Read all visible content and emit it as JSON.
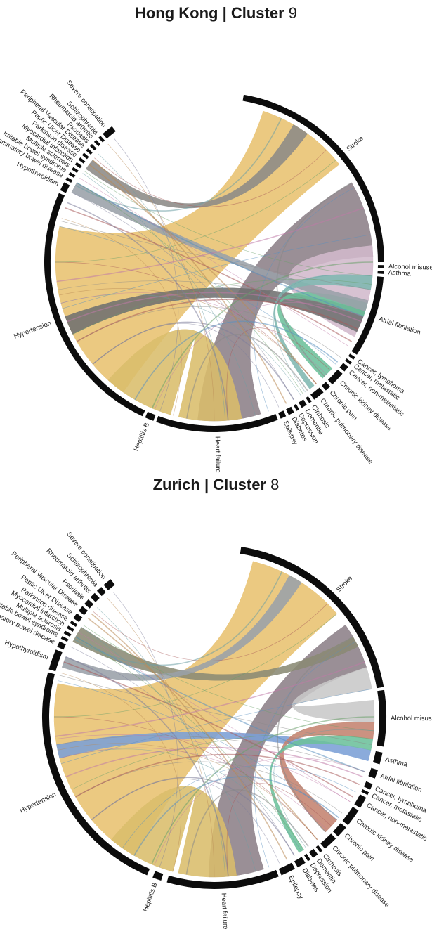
{
  "panels": [
    {
      "title": "Hong Kong | Cluster",
      "title_num": "9",
      "chart_data": {
        "type": "chord",
        "segments": [
          {
            "name": "Stroke",
            "start": 10,
            "end": 90
          },
          {
            "name": "Alcohol misuse",
            "start": 91,
            "end": 92
          },
          {
            "name": "Asthma",
            "start": 93,
            "end": 94
          },
          {
            "name": "Atrial fibrilation",
            "start": 95,
            "end": 123
          },
          {
            "name": "Cancer, lymphoma",
            "start": 124,
            "end": 125
          },
          {
            "name": "Cancer, metastatic",
            "start": 126,
            "end": 127
          },
          {
            "name": "Cancer, non-metastatic",
            "start": 128,
            "end": 130
          },
          {
            "name": "Chronic kidney disease",
            "start": 131,
            "end": 136
          },
          {
            "name": "Chronic pain",
            "start": 137,
            "end": 139
          },
          {
            "name": "Chronic pulmonary disease",
            "start": 140,
            "end": 144
          },
          {
            "name": "Cirrhosis",
            "start": 145,
            "end": 146
          },
          {
            "name": "Dementia",
            "start": 147,
            "end": 149
          },
          {
            "name": "Depression",
            "start": 150,
            "end": 151
          },
          {
            "name": "Diabetes",
            "start": 152,
            "end": 154
          },
          {
            "name": "Epilepsy",
            "start": 155,
            "end": 157
          },
          {
            "name": "Heart failure",
            "start": 158,
            "end": 200
          },
          {
            "name": "Hepititis B",
            "start": 201,
            "end": 204
          },
          {
            "name": "Hypertension",
            "start": 205,
            "end": 294
          },
          {
            "name": "Hypothyroidism",
            "start": 295,
            "end": 298
          },
          {
            "name": "Inflammatory bowel disease",
            "start": 299,
            "end": 300
          },
          {
            "name": "Irritable bowel syndrome",
            "start": 301,
            "end": 302
          },
          {
            "name": "Multiple sclerosis",
            "start": 303,
            "end": 304
          },
          {
            "name": "Myocardial infarction",
            "start": 305,
            "end": 306
          },
          {
            "name": "Parkinson disease",
            "start": 307,
            "end": 308
          },
          {
            "name": "Peptic Ulcer Disease",
            "start": 309,
            "end": 310
          },
          {
            "name": "Peripheral Vascular Disease",
            "start": 311,
            "end": 312
          },
          {
            "name": "Psoriasis",
            "start": 313,
            "end": 314
          },
          {
            "name": "Rheumatoid arthritis",
            "start": 315,
            "end": 316
          },
          {
            "name": "Schizophrenia",
            "start": 317,
            "end": 318
          },
          {
            "name": "Severe constipation",
            "start": 319,
            "end": 323
          }
        ],
        "ribbons": [
          {
            "a": [
              18,
              52
            ],
            "b": [
              215,
              283
            ],
            "color": "#e8c170"
          },
          {
            "a": [
              60,
              88
            ],
            "b": [
              163,
              186
            ],
            "color": "#8c7f88"
          },
          {
            "a": [
              99,
              118
            ],
            "b": [
              84,
              112
            ],
            "color": "#d2b9cc"
          },
          {
            "a": [
              170,
              193
            ],
            "b": [
              196,
              222
            ],
            "color": "#d9bd6b"
          },
          {
            "a": [
              108,
              116
            ],
            "b": [
              243,
              250
            ],
            "color": "#6f6f6f"
          },
          {
            "a": [
              132,
              137
            ],
            "b": [
              105,
              110
            ],
            "color": "#6cc09b"
          },
          {
            "a": [
              306,
              310
            ],
            "b": [
              30,
              36
            ],
            "color": "#8c8a86"
          },
          {
            "a": [
              296,
              300
            ],
            "b": [
              104,
              108
            ],
            "color": "#9aa0a8"
          },
          {
            "a": [
              141,
              143
            ],
            "b": [
              95,
              100
            ],
            "color": "#7fb7b0"
          }
        ],
        "threads": [
          [
            300,
            110
          ],
          [
            302,
            122
          ],
          [
            305,
            95
          ],
          [
            308,
            140
          ],
          [
            296,
            150
          ],
          [
            313,
            176
          ],
          [
            290,
            120
          ],
          [
            285,
            100
          ],
          [
            283,
            130
          ],
          [
            248,
            112
          ],
          [
            243,
            98
          ],
          [
            258,
            140
          ],
          [
            150,
            230
          ],
          [
            147,
            255
          ],
          [
            140,
            270
          ],
          [
            136,
            60
          ],
          [
            160,
            62
          ],
          [
            202,
            110
          ],
          [
            203,
            90
          ],
          [
            318,
            180
          ],
          [
            321,
            200
          ],
          [
            299,
            25
          ],
          [
            311,
            45
          ],
          [
            127,
            240
          ],
          [
            129,
            210
          ],
          [
            135,
            255
          ],
          [
            146,
            300
          ],
          [
            153,
            310
          ],
          [
            156,
            230
          ],
          [
            145,
            95
          ],
          [
            115,
            240
          ],
          [
            110,
            260
          ],
          [
            253,
            80
          ],
          [
            263,
            70
          ],
          [
            270,
            50
          ],
          [
            286,
            195
          ],
          [
            292,
            175
          ],
          [
            304,
            165
          ],
          [
            133,
            175
          ],
          [
            144,
            190
          ]
        ],
        "thread_colors": [
          "#5a8fbf",
          "#c07aa8",
          "#6aa06a",
          "#b98b56",
          "#7d7d9a",
          "#6c9fa4",
          "#a85a5a",
          "#888888"
        ]
      }
    },
    {
      "title": "Zurich | Cluster",
      "title_num": "8",
      "chart_data": {
        "type": "chord",
        "segments": [
          {
            "name": "Stroke",
            "start": 9,
            "end": 80
          },
          {
            "name": "Alcohol misuse",
            "start": 81,
            "end": 100
          },
          {
            "name": "Asthma",
            "start": 102,
            "end": 106
          },
          {
            "name": "Atrial fibrilation",
            "start": 108,
            "end": 111
          },
          {
            "name": "Cancer, lymphoma",
            "start": 113,
            "end": 115
          },
          {
            "name": "Cancer, metastatic",
            "start": 116,
            "end": 117
          },
          {
            "name": "Cancer, non-metastatic",
            "start": 118,
            "end": 122
          },
          {
            "name": "Chronic kidney disease",
            "start": 123,
            "end": 129
          },
          {
            "name": "Chronic pain",
            "start": 130,
            "end": 134
          },
          {
            "name": "Chronic pulmonary disease",
            "start": 135,
            "end": 140
          },
          {
            "name": "Cirrhosis",
            "start": 141,
            "end": 142
          },
          {
            "name": "Dementia",
            "start": 143,
            "end": 145
          },
          {
            "name": "Depression",
            "start": 146,
            "end": 147
          },
          {
            "name": "Diabetes",
            "start": 148,
            "end": 151
          },
          {
            "name": "Epilepsy",
            "start": 152,
            "end": 157
          },
          {
            "name": "Heart failure",
            "start": 158,
            "end": 196
          },
          {
            "name": "Hepititis B",
            "start": 198,
            "end": 201
          },
          {
            "name": "Hypertension",
            "start": 203,
            "end": 285
          },
          {
            "name": "Hypothyroidism",
            "start": 286,
            "end": 293
          },
          {
            "name": "Inflammatory bowel disease",
            "start": 294,
            "end": 296
          },
          {
            "name": "Irritable bowel syndrome",
            "start": 297,
            "end": 298
          },
          {
            "name": "Multiple sclerosis",
            "start": 299,
            "end": 300
          },
          {
            "name": "Myocardial infarction",
            "start": 301,
            "end": 302
          },
          {
            "name": "Parkinson disease",
            "start": 303,
            "end": 304
          },
          {
            "name": "Peptic Ulcer Disease",
            "start": 305,
            "end": 307
          },
          {
            "name": "Peripheral Vascular Disease",
            "start": 308,
            "end": 310
          },
          {
            "name": "Psoriasis",
            "start": 311,
            "end": 313
          },
          {
            "name": "Rheumatoid arthritis",
            "start": 314,
            "end": 316
          },
          {
            "name": "Schizophrenia",
            "start": 317,
            "end": 319
          },
          {
            "name": "Severe constipation",
            "start": 320,
            "end": 323
          }
        ],
        "ribbons": [
          {
            "a": [
              14,
              50
            ],
            "b": [
              210,
              282
            ],
            "color": "#e8c170"
          },
          {
            "a": [
              55,
              72
            ],
            "b": [
              162,
              182
            ],
            "color": "#8c7f88"
          },
          {
            "a": [
              172,
              193
            ],
            "b": [
              195,
              220
            ],
            "color": "#d9bd6b"
          },
          {
            "a": [
              84,
              92
            ],
            "b": [
              72,
              80
            ],
            "color": "#c8c8c8"
          },
          {
            "a": [
              102,
              106
            ],
            "b": [
              255,
              260
            ],
            "color": "#7b9fd6"
          },
          {
            "a": [
              92,
              98
            ],
            "b": [
              130,
              136
            ],
            "color": "#c4836f"
          },
          {
            "a": [
              298,
              304
            ],
            "b": [
              60,
              64
            ],
            "color": "#8a8a74"
          },
          {
            "a": [
              288,
              292
            ],
            "b": [
              28,
              33
            ],
            "color": "#9aa0a8"
          },
          {
            "a": [
              146,
              148
            ],
            "b": [
              98,
              102
            ],
            "color": "#6cc09b"
          }
        ],
        "threads": [
          [
            300,
            110
          ],
          [
            302,
            122
          ],
          [
            305,
            95
          ],
          [
            308,
            140
          ],
          [
            296,
            150
          ],
          [
            313,
            176
          ],
          [
            290,
            120
          ],
          [
            285,
            100
          ],
          [
            283,
            130
          ],
          [
            248,
            112
          ],
          [
            243,
            98
          ],
          [
            258,
            140
          ],
          [
            150,
            230
          ],
          [
            147,
            255
          ],
          [
            140,
            270
          ],
          [
            136,
            60
          ],
          [
            160,
            62
          ],
          [
            202,
            110
          ],
          [
            203,
            90
          ],
          [
            318,
            180
          ],
          [
            321,
            200
          ],
          [
            299,
            25
          ],
          [
            311,
            45
          ],
          [
            127,
            240
          ],
          [
            129,
            210
          ],
          [
            135,
            255
          ],
          [
            146,
            300
          ],
          [
            153,
            310
          ],
          [
            156,
            230
          ],
          [
            145,
            95
          ],
          [
            115,
            240
          ],
          [
            110,
            260
          ],
          [
            253,
            80
          ],
          [
            263,
            70
          ],
          [
            270,
            50
          ],
          [
            286,
            195
          ],
          [
            292,
            175
          ],
          [
            304,
            165
          ],
          [
            133,
            175
          ],
          [
            144,
            190
          ],
          [
            118,
            215
          ],
          [
            122,
            262
          ]
        ],
        "thread_colors": [
          "#5a8fbf",
          "#c07aa8",
          "#6aa06a",
          "#b98b56",
          "#7d7d9a",
          "#6c9fa4",
          "#a85a5a",
          "#888888"
        ]
      }
    }
  ]
}
